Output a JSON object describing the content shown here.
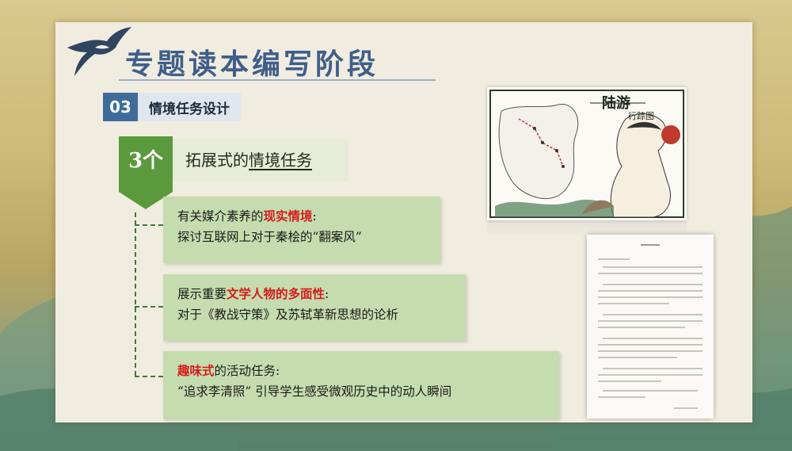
{
  "title": "专题读本编写阶段",
  "section": {
    "number": "03",
    "label": "情境任务设计"
  },
  "ribbon": {
    "text": "3个"
  },
  "header": {
    "prefix": "拓展式的",
    "emphasis": "情境任务"
  },
  "tasks": [
    {
      "pre": "有关媒介素养的",
      "highlight": "现实情境",
      "post": ":",
      "line2": "探讨互联网上对于秦桧的“翻案风”"
    },
    {
      "pre": "展示重要",
      "highlight": "文学人物的多面性",
      "post": ":",
      "line2": "对于《教战守策》及苏轼革新思想的论析"
    },
    {
      "pre": "",
      "highlight": "趣味式",
      "post": "的活动任务:",
      "line2": "“追求李清照” 引导学生感受微观历史中的动人瞬间"
    }
  ],
  "map_image": {
    "title_line1": "陆游",
    "title_line2": "行踪图"
  },
  "colors": {
    "accent_blue": "#3f6b9a",
    "ribbon_green": "#5a9a3c",
    "task_green": "#c5dcae",
    "highlight_red": "#d41c1c"
  }
}
